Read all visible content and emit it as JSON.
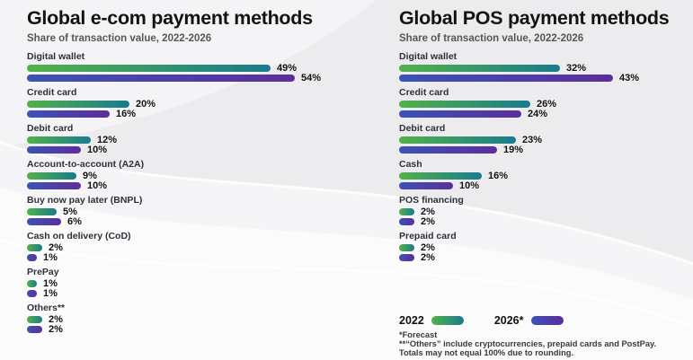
{
  "page": {
    "background_color": "#ececee",
    "swoosh_color": "#ffffff"
  },
  "colors": {
    "series_2022_gradient_start": "#53b14a",
    "series_2022_gradient_end": "#1a7b8c",
    "series_2026_gradient_start": "#3b53b5",
    "series_2026_gradient_end": "#5c2d9c",
    "title_text": "#131313",
    "subtitle_text": "#575757",
    "category_label_text": "#2f2f3a",
    "value_label_text": "#121212"
  },
  "legend": {
    "year_2022_label": "2022",
    "year_2026_label": "2026*"
  },
  "footnotes": [
    "*Forecast",
    "**“Others” include cryptocurrencies, prepaid cards and PostPay.",
    "Totals may not equal 100% due to rounding."
  ],
  "chart_data": [
    {
      "type": "bar",
      "orientation": "horizontal",
      "title": "Global e-com payment methods",
      "subtitle": "Share of transaction value, 2022-2026",
      "unit": "%",
      "grid": false,
      "xlim": [
        0,
        60
      ],
      "legend_position": "shared-bottom-right",
      "categories": [
        "Digital wallet",
        "Credit card",
        "Debit card",
        "Account-to-account (A2A)",
        "Buy now pay later (BNPL)",
        "Cash on delivery (CoD)",
        "PrePay",
        "Others**"
      ],
      "series": [
        {
          "name": "2022",
          "values": [
            49,
            20,
            12,
            9,
            5,
            2,
            1,
            2
          ]
        },
        {
          "name": "2026*",
          "values": [
            54,
            16,
            10,
            10,
            6,
            1,
            1,
            2
          ]
        }
      ]
    },
    {
      "type": "bar",
      "orientation": "horizontal",
      "title": "Global POS payment methods",
      "subtitle": "Share of transaction value, 2022-2026",
      "unit": "%",
      "grid": false,
      "xlim": [
        0,
        60
      ],
      "legend_position": "shared-bottom-right",
      "categories": [
        "Digital wallet",
        "Credit card",
        "Debit card",
        "Cash",
        "POS financing",
        "Prepaid card"
      ],
      "series": [
        {
          "name": "2022",
          "values": [
            32,
            26,
            23,
            16,
            2,
            2
          ]
        },
        {
          "name": "2026*",
          "values": [
            43,
            24,
            19,
            10,
            2,
            2
          ]
        }
      ]
    }
  ]
}
